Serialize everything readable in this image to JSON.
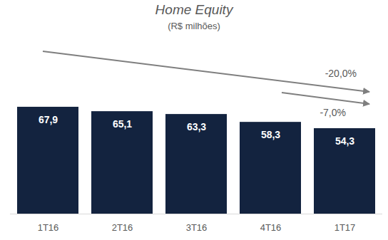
{
  "chart_data": {
    "type": "bar",
    "title": "Home Equity",
    "subtitle": "(R$ milhões)",
    "categories": [
      "1T16",
      "2T16",
      "3T16",
      "4T16",
      "1T17"
    ],
    "values": [
      67.9,
      65.1,
      63.3,
      58.3,
      54.3
    ],
    "value_labels": [
      "67,9",
      "65,1",
      "63,3",
      "58,3",
      "54,3"
    ],
    "color": "#13233f",
    "ylim": [
      0,
      100
    ],
    "grid": false,
    "data_labels": true,
    "tick_labels": "x",
    "annotations": [
      "-20,0%",
      "-7,0%"
    ]
  }
}
